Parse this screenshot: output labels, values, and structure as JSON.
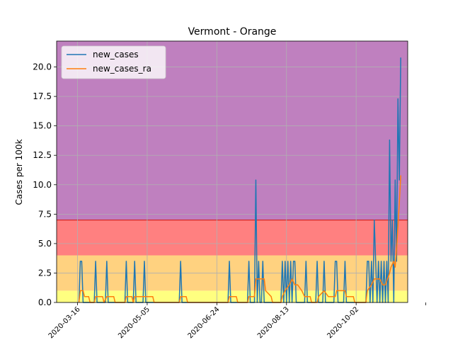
{
  "chart_data": {
    "type": "line",
    "title": "Vermont - Orange",
    "xlabel": "",
    "ylabel": "Cases per 100k",
    "x_start": "2020-03-01",
    "x_end": "2020-11-08",
    "xlim": [
      "2020-03-01",
      "2020-11-08"
    ],
    "ylim": [
      0,
      22.2
    ],
    "xticks": [
      "2020-03-16",
      "2020-05-05",
      "2020-06-24",
      "2020-08-13",
      "2020-10-02",
      "2020-11-21"
    ],
    "xtick_labels": [
      "2020-03-16",
      "2020-05-05",
      "2020-06-24",
      "2020-08-13",
      "2020-10-02",
      ""
    ],
    "yticks": [
      0.0,
      2.5,
      5.0,
      7.5,
      10.0,
      12.5,
      15.0,
      17.5,
      20.0
    ],
    "ytick_labels": [
      "0.0",
      "2.5",
      "5.0",
      "7.5",
      "10.0",
      "12.5",
      "15.0",
      "17.5",
      "20.0"
    ],
    "grid": true,
    "legend": {
      "position": "top-left",
      "entries": [
        "new_cases",
        "new_cases_ra"
      ]
    },
    "bands": [
      {
        "from": 0,
        "to": 1,
        "color": "#ffff80"
      },
      {
        "from": 1,
        "to": 4,
        "color": "#ffd280"
      },
      {
        "from": 4,
        "to": 7,
        "color": "#ff8080"
      },
      {
        "from": 7,
        "to": 22.2,
        "color": "#bf80bf"
      }
    ],
    "band_line": {
      "y": 7,
      "color": "#d62728"
    },
    "series": [
      {
        "name": "new_cases",
        "color": "#1f77b4",
        "points": [
          [
            "2020-03-17",
            0
          ],
          [
            "2020-03-18",
            3.5
          ],
          [
            "2020-03-19",
            3.5
          ],
          [
            "2020-03-20",
            0
          ],
          [
            "2020-03-28",
            0
          ],
          [
            "2020-03-29",
            3.5
          ],
          [
            "2020-03-30",
            0
          ],
          [
            "2020-04-05",
            0
          ],
          [
            "2020-04-06",
            3.5
          ],
          [
            "2020-04-07",
            0
          ],
          [
            "2020-04-19",
            0
          ],
          [
            "2020-04-20",
            3.5
          ],
          [
            "2020-04-21",
            0
          ],
          [
            "2020-04-25",
            0
          ],
          [
            "2020-04-26",
            3.5
          ],
          [
            "2020-04-27",
            0
          ],
          [
            "2020-05-02",
            0
          ],
          [
            "2020-05-03",
            3.5
          ],
          [
            "2020-05-04",
            0
          ],
          [
            "2020-05-28",
            0
          ],
          [
            "2020-05-29",
            3.5
          ],
          [
            "2020-05-30",
            0
          ],
          [
            "2020-07-02",
            0
          ],
          [
            "2020-07-03",
            3.5
          ],
          [
            "2020-07-04",
            0
          ],
          [
            "2020-07-16",
            0
          ],
          [
            "2020-07-17",
            3.5
          ],
          [
            "2020-07-18",
            0
          ],
          [
            "2020-07-21",
            0
          ],
          [
            "2020-07-22",
            10.4
          ],
          [
            "2020-07-23",
            0
          ],
          [
            "2020-07-24",
            3.5
          ],
          [
            "2020-07-25",
            0
          ],
          [
            "2020-07-26",
            0
          ],
          [
            "2020-07-27",
            3.5
          ],
          [
            "2020-07-28",
            0
          ],
          [
            "2020-08-09",
            0
          ],
          [
            "2020-08-10",
            3.5
          ],
          [
            "2020-08-11",
            0
          ],
          [
            "2020-08-12",
            3.5
          ],
          [
            "2020-08-13",
            0
          ],
          [
            "2020-08-14",
            3.5
          ],
          [
            "2020-08-15",
            0
          ],
          [
            "2020-08-16",
            3.5
          ],
          [
            "2020-08-17",
            0
          ],
          [
            "2020-08-18",
            3.5
          ],
          [
            "2020-08-19",
            3.5
          ],
          [
            "2020-08-20",
            0
          ],
          [
            "2020-08-26",
            0
          ],
          [
            "2020-08-27",
            3.5
          ],
          [
            "2020-08-28",
            0
          ],
          [
            "2020-09-03",
            0
          ],
          [
            "2020-09-04",
            3.5
          ],
          [
            "2020-09-05",
            0
          ],
          [
            "2020-09-08",
            0
          ],
          [
            "2020-09-09",
            3.5
          ],
          [
            "2020-09-10",
            0
          ],
          [
            "2020-09-16",
            0
          ],
          [
            "2020-09-17",
            3.5
          ],
          [
            "2020-09-18",
            3.5
          ],
          [
            "2020-09-19",
            0
          ],
          [
            "2020-09-23",
            0
          ],
          [
            "2020-09-24",
            3.5
          ],
          [
            "2020-09-25",
            0
          ],
          [
            "2020-10-09",
            0
          ],
          [
            "2020-10-10",
            3.5
          ],
          [
            "2020-10-11",
            3.5
          ],
          [
            "2020-10-12",
            0
          ],
          [
            "2020-10-13",
            3.5
          ],
          [
            "2020-10-14",
            0
          ],
          [
            "2020-10-15",
            7.0
          ],
          [
            "2020-10-16",
            3.5
          ],
          [
            "2020-10-17",
            0
          ],
          [
            "2020-10-18",
            3.5
          ],
          [
            "2020-10-19",
            0
          ],
          [
            "2020-10-20",
            3.5
          ],
          [
            "2020-10-21",
            0
          ],
          [
            "2020-10-22",
            3.5
          ],
          [
            "2020-10-23",
            0
          ],
          [
            "2020-10-24",
            3.5
          ],
          [
            "2020-10-25",
            0
          ],
          [
            "2020-10-26",
            13.8
          ],
          [
            "2020-10-27",
            3.5
          ],
          [
            "2020-10-28",
            7.0
          ],
          [
            "2020-10-29",
            0
          ],
          [
            "2020-10-30",
            10.4
          ],
          [
            "2020-10-31",
            3.5
          ],
          [
            "2020-11-01",
            17.3
          ],
          [
            "2020-11-02",
            10.4
          ],
          [
            "2020-11-03",
            20.8
          ]
        ]
      },
      {
        "name": "new_cases_ra",
        "color": "#ff7f0e",
        "points": [
          [
            "2020-03-17",
            0
          ],
          [
            "2020-03-18",
            1.0
          ],
          [
            "2020-03-20",
            1.0
          ],
          [
            "2020-03-21",
            0.5
          ],
          [
            "2020-03-24",
            0.5
          ],
          [
            "2020-03-25",
            0
          ],
          [
            "2020-03-28",
            0
          ],
          [
            "2020-03-29",
            0.5
          ],
          [
            "2020-04-03",
            0.5
          ],
          [
            "2020-04-04",
            0
          ],
          [
            "2020-04-06",
            0.5
          ],
          [
            "2020-04-11",
            0.5
          ],
          [
            "2020-04-12",
            0
          ],
          [
            "2020-04-19",
            0
          ],
          [
            "2020-04-20",
            0.5
          ],
          [
            "2020-04-24",
            0.5
          ],
          [
            "2020-04-25",
            0
          ],
          [
            "2020-04-26",
            0.5
          ],
          [
            "2020-05-09",
            0.5
          ],
          [
            "2020-05-10",
            0
          ],
          [
            "2020-05-28",
            0
          ],
          [
            "2020-05-29",
            0.5
          ],
          [
            "2020-06-02",
            0.5
          ],
          [
            "2020-06-03",
            0
          ],
          [
            "2020-07-02",
            0
          ],
          [
            "2020-07-03",
            0.5
          ],
          [
            "2020-07-08",
            0.5
          ],
          [
            "2020-07-09",
            0
          ],
          [
            "2020-07-16",
            0
          ],
          [
            "2020-07-17",
            0.5
          ],
          [
            "2020-07-21",
            0.5
          ],
          [
            "2020-07-22",
            2.0
          ],
          [
            "2020-07-28",
            2.0
          ],
          [
            "2020-07-29",
            1.0
          ],
          [
            "2020-08-02",
            0.5
          ],
          [
            "2020-08-03",
            0
          ],
          [
            "2020-08-09",
            0
          ],
          [
            "2020-08-10",
            0.5
          ],
          [
            "2020-08-12",
            1.0
          ],
          [
            "2020-08-15",
            1.5
          ],
          [
            "2020-08-17",
            2.0
          ],
          [
            "2020-08-19",
            1.5
          ],
          [
            "2020-08-21",
            1.5
          ],
          [
            "2020-08-24",
            1.0
          ],
          [
            "2020-08-26",
            0.5
          ],
          [
            "2020-08-30",
            0.5
          ],
          [
            "2020-08-31",
            0
          ],
          [
            "2020-09-04",
            0
          ],
          [
            "2020-09-05",
            0.5
          ],
          [
            "2020-09-09",
            1.0
          ],
          [
            "2020-09-12",
            0.5
          ],
          [
            "2020-09-17",
            0.5
          ],
          [
            "2020-09-18",
            1.0
          ],
          [
            "2020-09-24",
            1.0
          ],
          [
            "2020-09-25",
            0.5
          ],
          [
            "2020-09-30",
            0.5
          ],
          [
            "2020-10-01",
            0
          ],
          [
            "2020-10-09",
            0
          ],
          [
            "2020-10-10",
            1.0
          ],
          [
            "2020-10-13",
            1.5
          ],
          [
            "2020-10-15",
            2.0
          ],
          [
            "2020-10-19",
            2.0
          ],
          [
            "2020-10-21",
            1.5
          ],
          [
            "2020-10-23",
            1.5
          ],
          [
            "2020-10-26",
            2.5
          ],
          [
            "2020-10-27",
            3.0
          ],
          [
            "2020-10-29",
            3.5
          ],
          [
            "2020-10-30",
            3.0
          ],
          [
            "2020-10-31",
            4.5
          ],
          [
            "2020-11-01",
            6.5
          ],
          [
            "2020-11-02",
            8.5
          ],
          [
            "2020-11-03",
            10.8
          ]
        ]
      }
    ]
  }
}
